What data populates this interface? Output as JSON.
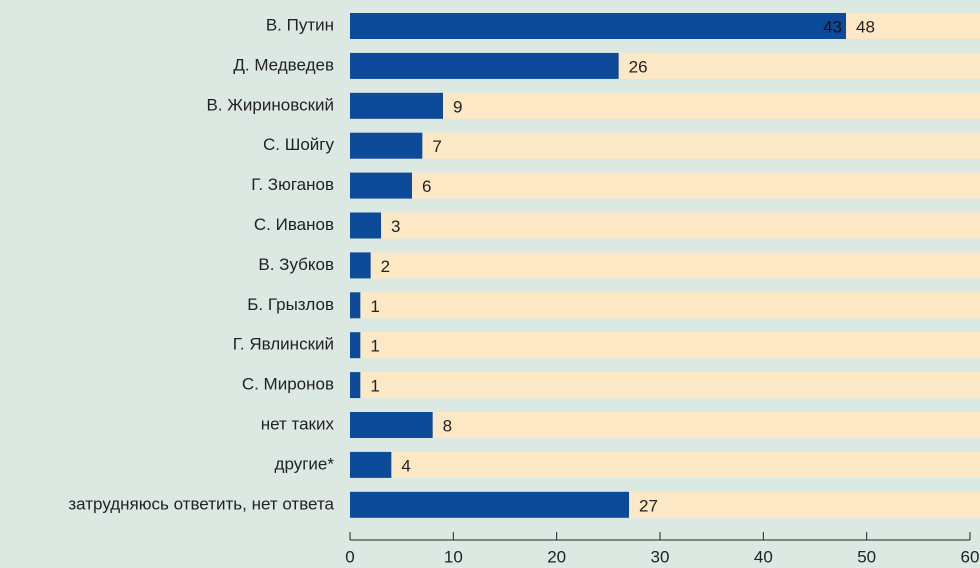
{
  "chart_data": {
    "type": "bar",
    "orientation": "horizontal",
    "categories": [
      "В. Путин",
      "Д. Медведев",
      "В. Жириновский",
      "С. Шойгу",
      "Г. Зюганов",
      "С. Иванов",
      "В. Зубков",
      "Б. Грызлов",
      "Г. Явлинский",
      "С. Миронов",
      "нет таких",
      "другие*",
      "затрудняюсь ответить, нет ответа"
    ],
    "values": [
      48,
      26,
      9,
      7,
      6,
      3,
      2,
      1,
      1,
      1,
      8,
      4,
      27
    ],
    "color": "#0d4a9a",
    "track_color": "#fde8c6",
    "annotation": "43",
    "xlim": [
      0,
      60
    ],
    "xticks": [
      0,
      10,
      20,
      30,
      40,
      50,
      60
    ]
  }
}
